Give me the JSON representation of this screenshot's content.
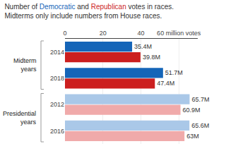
{
  "chart_data": {
    "type": "bar",
    "orientation": "horizontal",
    "title": "Number of Democratic and Republican votes in races. Midterms only include numbers from House races.",
    "categories": [
      "2014",
      "2018",
      "2012",
      "2016"
    ],
    "series": [
      {
        "name": "Democratic",
        "color": "#1565b8",
        "colors": [
          "#1565b8",
          "#1565b8",
          "#aac8e8",
          "#aac8e8"
        ],
        "values": [
          35.4,
          51.7,
          65.7,
          65.6
        ],
        "value_labels": [
          "35.4M",
          "51.7M",
          "65.7M",
          "65.6M"
        ]
      },
      {
        "name": "Republican",
        "color": "#cc1f1f",
        "colors": [
          "#cc1f1f",
          "#cc1f1f",
          "#f0aaaa",
          "#f0aaaa"
        ],
        "values": [
          39.8,
          47.4,
          60.9,
          63.0
        ],
        "value_labels": [
          "39.8M",
          "47.4M",
          "60.9M",
          "63M"
        ]
      }
    ],
    "xlim": [
      0,
      70
    ],
    "xticks": [
      0,
      20,
      40,
      {
        "value": 60,
        "label": "60 million votes"
      }
    ],
    "grid": true,
    "data_labels": true,
    "annotations": [
      {
        "text": "Midterm\nyears",
        "categories": [
          "2014",
          "2018"
        ]
      },
      {
        "text": "Presidential\nyears",
        "categories": [
          "2012",
          "2016"
        ]
      }
    ]
  }
}
